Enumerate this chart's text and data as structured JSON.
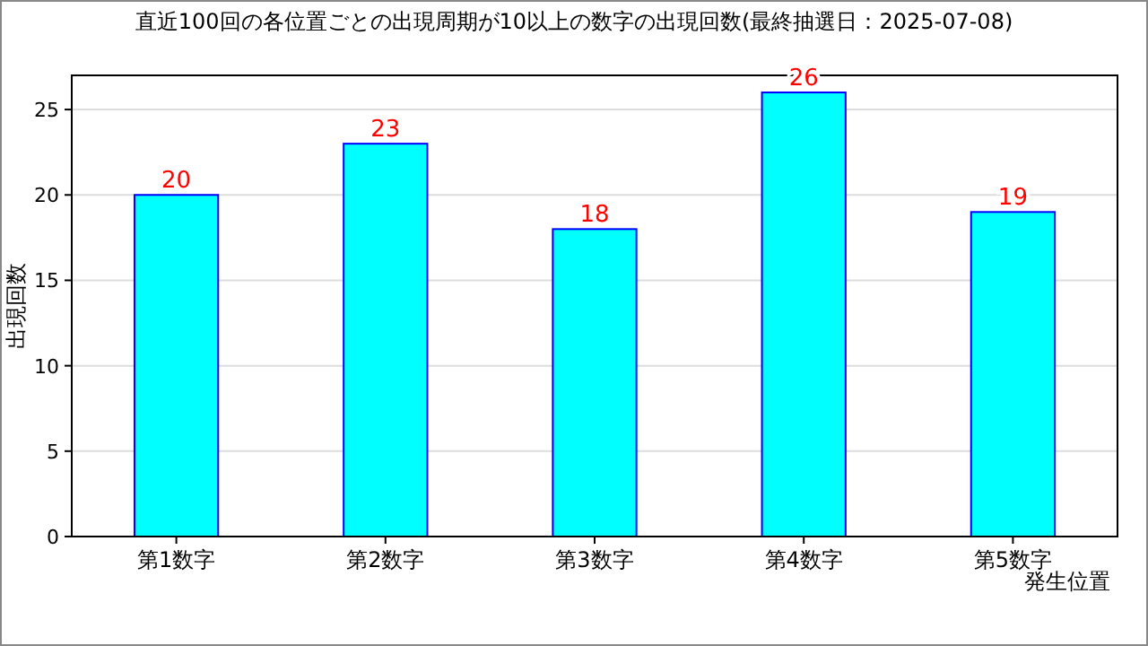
{
  "chart_data": {
    "type": "bar",
    "title": "直近100回の各位置ごとの出現周期が10以上の数字の出現回数(最終抽選日：2025-07-08)",
    "xlabel": "発生位置",
    "ylabel": "出現回数",
    "categories": [
      "第1数字",
      "第2数字",
      "第3数字",
      "第4数字",
      "第5数字"
    ],
    "values": [
      20,
      23,
      18,
      26,
      19
    ],
    "color": "#00ffff",
    "data_labels": true,
    "ylim": [
      0,
      27
    ],
    "yticks": [
      0,
      5,
      10,
      15,
      20,
      25
    ],
    "grid": "y"
  }
}
